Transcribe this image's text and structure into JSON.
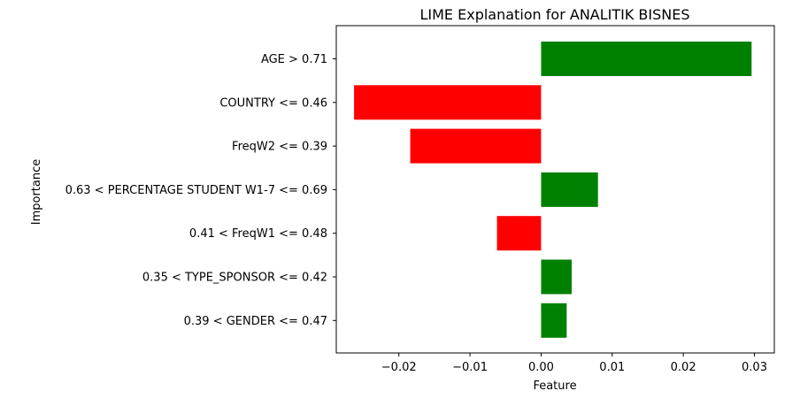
{
  "chart_data": {
    "type": "bar",
    "orientation": "horizontal",
    "title": "LIME Explanation for ANALITIK BISNES",
    "xlabel": "Feature",
    "ylabel": "Importance",
    "categories": [
      "AGE > 0.71",
      "COUNTRY <= 0.46",
      "FreqW2 <= 0.39",
      "0.63 < PERCENTAGE STUDENT W1-7 <= 0.69",
      "0.41 < FreqW1 <= 0.48",
      "0.35 < TYPE_SPONSOR <= 0.42",
      "0.39 < GENDER <= 0.47"
    ],
    "values": [
      0.0296,
      -0.0263,
      -0.0184,
      0.008,
      -0.0062,
      0.0043,
      0.0036
    ],
    "xlim": [
      -0.0288,
      0.0328
    ],
    "xticks": [
      -0.02,
      -0.01,
      0.0,
      0.01,
      0.02,
      0.03
    ],
    "xtick_labels": [
      "−0.02",
      "−0.01",
      "0.00",
      "0.01",
      "0.02",
      "0.03"
    ],
    "grid": false,
    "colors": {
      "positive": "#008000",
      "negative": "#ff0000"
    }
  }
}
